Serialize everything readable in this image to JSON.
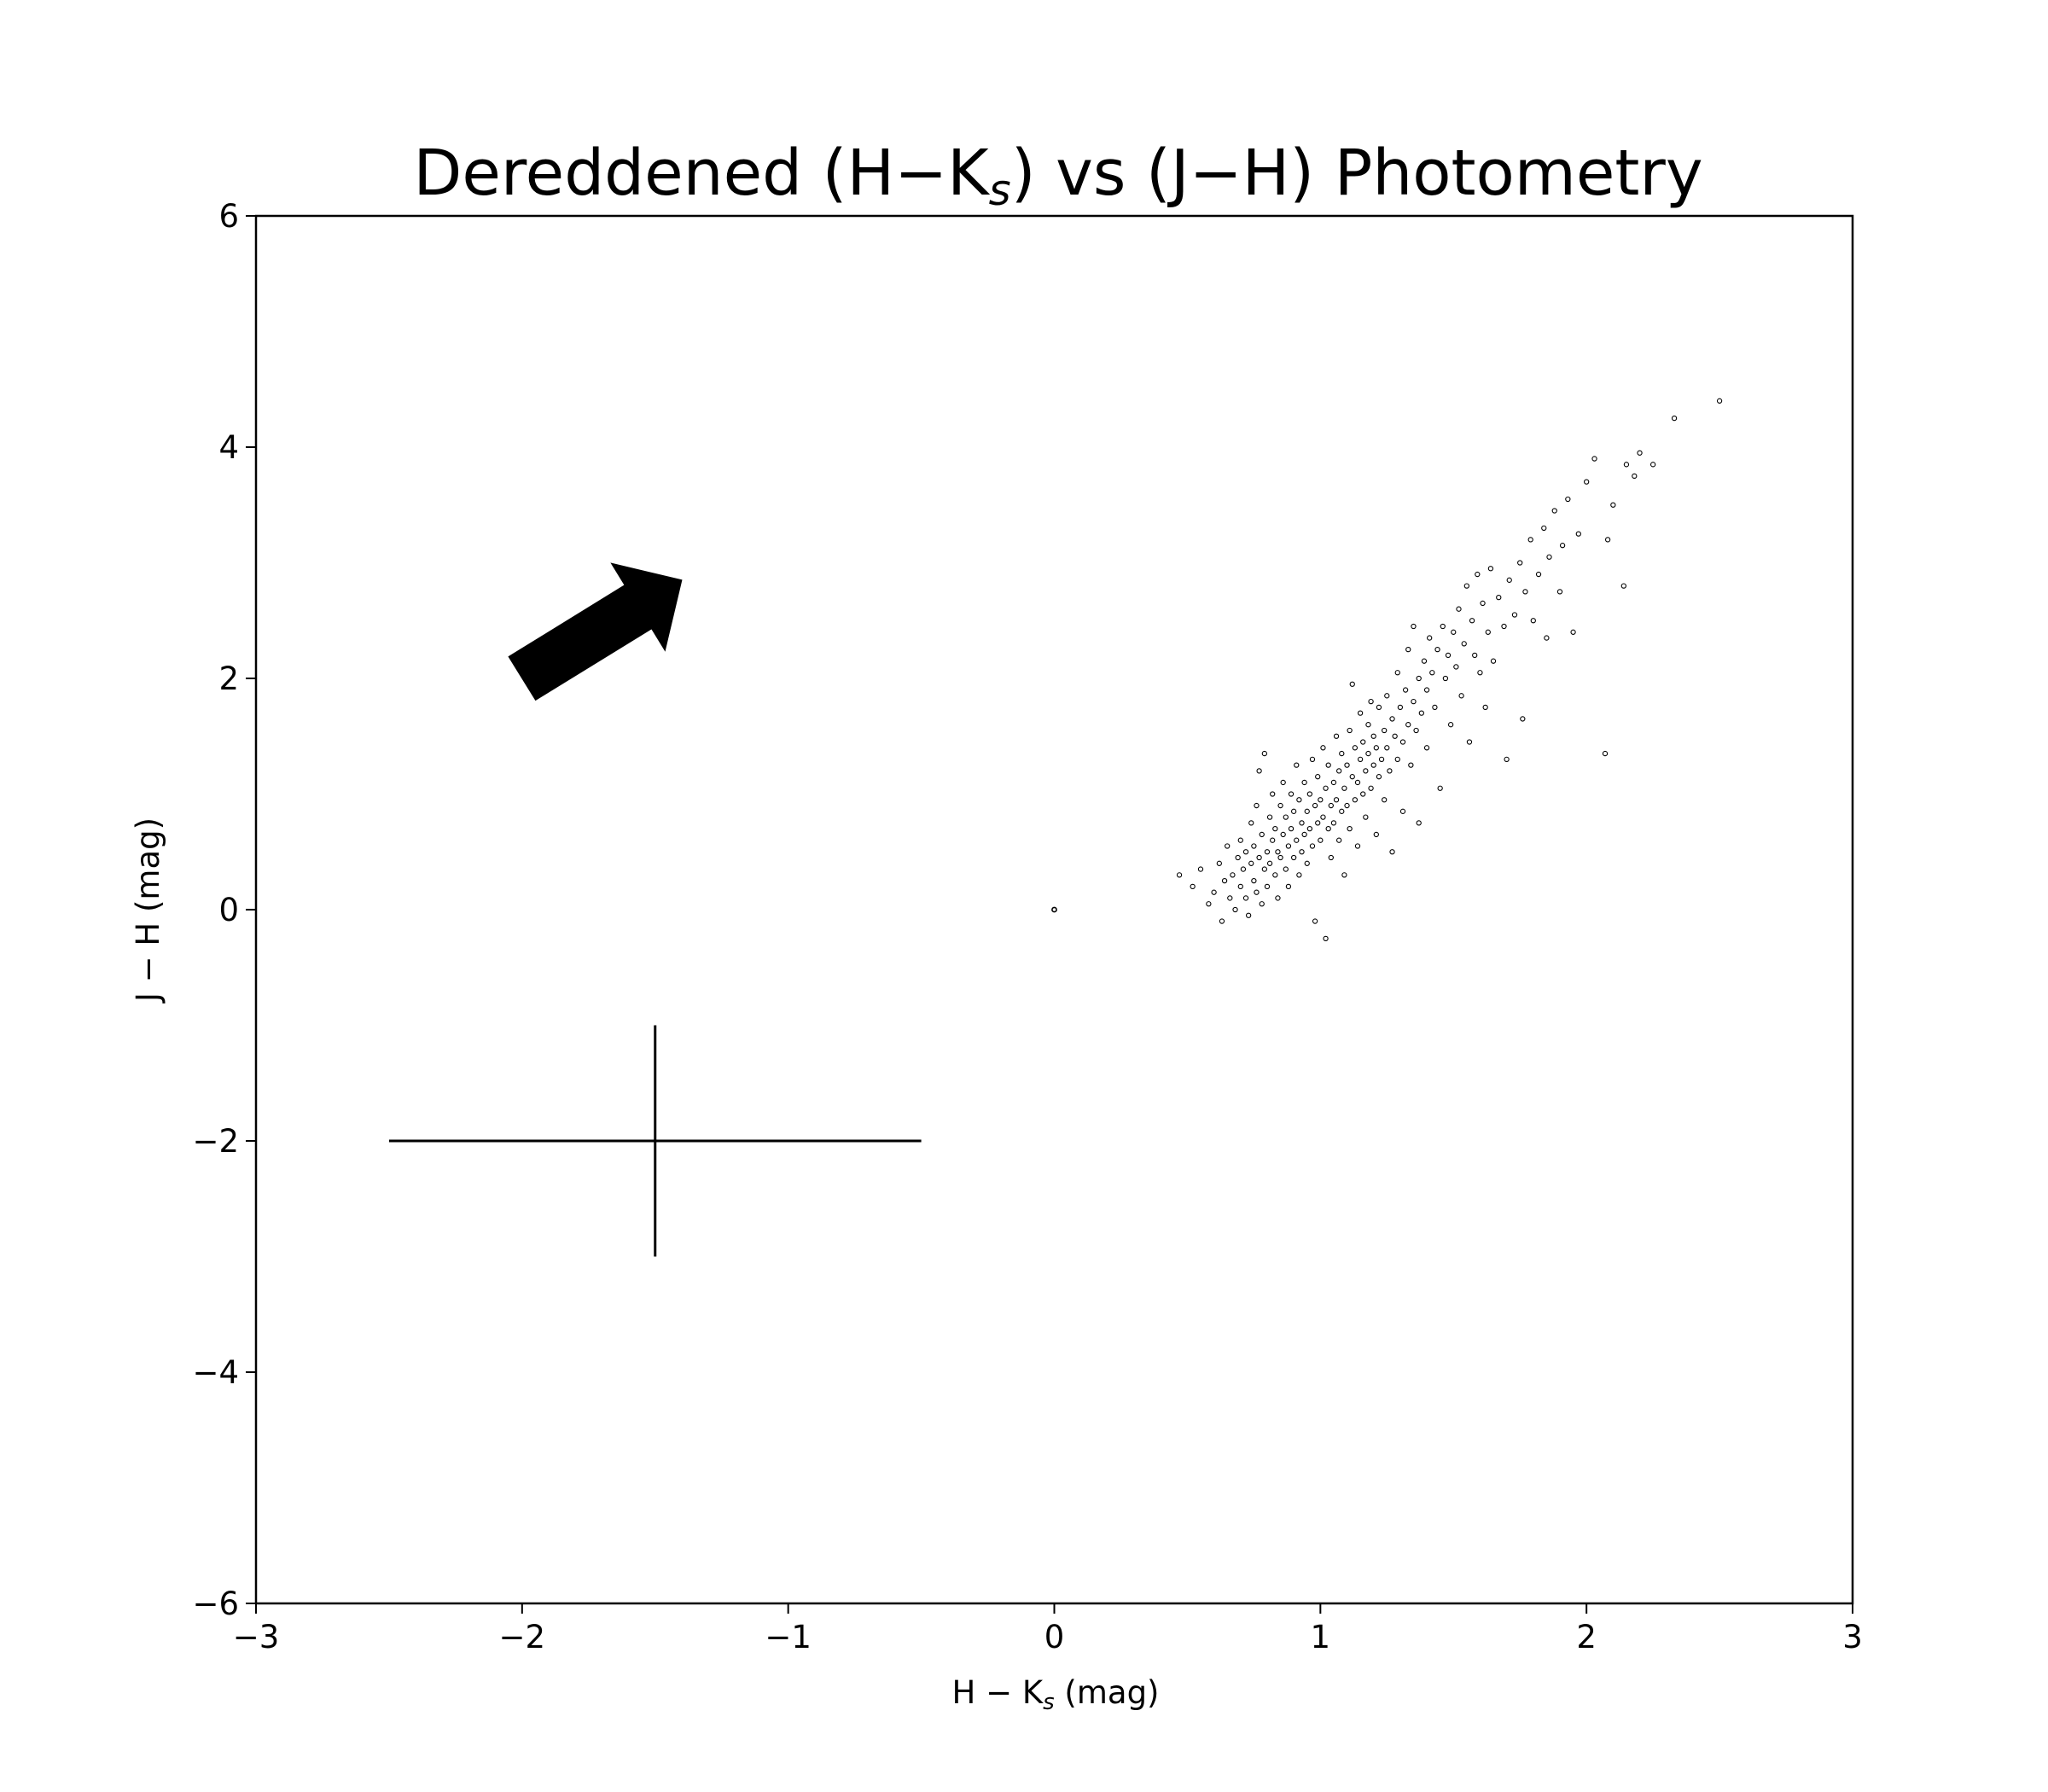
{
  "chart_data": {
    "type": "scatter",
    "title": {
      "main": "Dereddened (H−K",
      "sub": "s",
      "rest": ") vs (J−H) Photometry"
    },
    "xlabel": {
      "main": "H − K",
      "sub": "s",
      "rest": " (mag)"
    },
    "ylabel": "J − H (mag)",
    "xlim": [
      -3,
      3
    ],
    "ylim": [
      -6,
      6
    ],
    "xticks": [
      -3,
      -2,
      -1,
      0,
      1,
      2,
      3
    ],
    "yticks": [
      -6,
      -4,
      -2,
      0,
      2,
      4,
      6
    ],
    "xtick_labels": [
      "−3",
      "−2",
      "−1",
      "0",
      "1",
      "2",
      "3"
    ],
    "ytick_labels": [
      "−6",
      "−4",
      "−2",
      "0",
      "2",
      "4",
      "6"
    ],
    "grid": false,
    "marker_color": "#000000",
    "reddening_vector": {
      "x_start": -2.0,
      "y_start": 2.0,
      "x_end": -1.4,
      "y_end": 2.85
    },
    "error_cross": {
      "x": -1.5,
      "y": -2.0,
      "x_err": 1.0,
      "y_err": 1.0
    },
    "origin_point": {
      "x": 0.0,
      "y": 0.0
    },
    "points": [
      [
        0.47,
        0.3
      ],
      [
        0.52,
        0.2
      ],
      [
        0.55,
        0.35
      ],
      [
        0.58,
        0.05
      ],
      [
        0.6,
        0.15
      ],
      [
        0.62,
        0.4
      ],
      [
        0.63,
        -0.1
      ],
      [
        0.64,
        0.25
      ],
      [
        0.65,
        0.55
      ],
      [
        0.66,
        0.1
      ],
      [
        0.67,
        0.3
      ],
      [
        0.68,
        0.0
      ],
      [
        0.69,
        0.45
      ],
      [
        0.7,
        0.2
      ],
      [
        0.7,
        0.6
      ],
      [
        0.71,
        0.35
      ],
      [
        0.72,
        0.1
      ],
      [
        0.72,
        0.5
      ],
      [
        0.73,
        -0.05
      ],
      [
        0.74,
        0.4
      ],
      [
        0.74,
        0.75
      ],
      [
        0.75,
        0.25
      ],
      [
        0.75,
        0.55
      ],
      [
        0.76,
        0.15
      ],
      [
        0.76,
        0.9
      ],
      [
        0.77,
        0.45
      ],
      [
        0.77,
        1.2
      ],
      [
        0.78,
        0.05
      ],
      [
        0.78,
        0.65
      ],
      [
        0.79,
        0.35
      ],
      [
        0.79,
        1.35
      ],
      [
        0.8,
        0.5
      ],
      [
        0.8,
        0.2
      ],
      [
        0.81,
        0.8
      ],
      [
        0.81,
        0.4
      ],
      [
        0.82,
        0.6
      ],
      [
        0.82,
        1.0
      ],
      [
        0.83,
        0.3
      ],
      [
        0.83,
        0.7
      ],
      [
        0.84,
        0.5
      ],
      [
        0.84,
        0.1
      ],
      [
        0.85,
        0.9
      ],
      [
        0.85,
        0.45
      ],
      [
        0.86,
        0.65
      ],
      [
        0.86,
        1.1
      ],
      [
        0.87,
        0.35
      ],
      [
        0.87,
        0.8
      ],
      [
        0.88,
        0.55
      ],
      [
        0.88,
        0.2
      ],
      [
        0.89,
        1.0
      ],
      [
        0.89,
        0.7
      ],
      [
        0.9,
        0.45
      ],
      [
        0.9,
        0.85
      ],
      [
        0.91,
        0.6
      ],
      [
        0.91,
        1.25
      ],
      [
        0.92,
        0.3
      ],
      [
        0.92,
        0.95
      ],
      [
        0.93,
        0.75
      ],
      [
        0.93,
        0.5
      ],
      [
        0.94,
        1.1
      ],
      [
        0.94,
        0.65
      ],
      [
        0.95,
        0.85
      ],
      [
        0.95,
        0.4
      ],
      [
        0.96,
        1.0
      ],
      [
        0.96,
        0.7
      ],
      [
        0.97,
        1.3
      ],
      [
        0.97,
        0.55
      ],
      [
        0.98,
        0.9
      ],
      [
        0.98,
        -0.1
      ],
      [
        0.99,
        0.75
      ],
      [
        0.99,
        1.15
      ],
      [
        1.0,
        0.6
      ],
      [
        1.0,
        0.95
      ],
      [
        1.01,
        1.4
      ],
      [
        1.01,
        0.8
      ],
      [
        1.02,
        -0.25
      ],
      [
        1.02,
        1.05
      ],
      [
        1.03,
        0.7
      ],
      [
        1.03,
        1.25
      ],
      [
        1.04,
        0.9
      ],
      [
        1.04,
        0.45
      ],
      [
        1.05,
        1.1
      ],
      [
        1.05,
        0.75
      ],
      [
        1.06,
        1.5
      ],
      [
        1.06,
        0.95
      ],
      [
        1.07,
        0.6
      ],
      [
        1.07,
        1.2
      ],
      [
        1.08,
        0.85
      ],
      [
        1.08,
        1.35
      ],
      [
        1.09,
        1.05
      ],
      [
        1.09,
        0.3
      ],
      [
        1.1,
        1.25
      ],
      [
        1.1,
        0.9
      ],
      [
        1.11,
        1.55
      ],
      [
        1.11,
        0.7
      ],
      [
        1.12,
        1.15
      ],
      [
        1.12,
        1.95
      ],
      [
        1.13,
        0.95
      ],
      [
        1.13,
        1.4
      ],
      [
        1.14,
        1.1
      ],
      [
        1.14,
        0.55
      ],
      [
        1.15,
        1.3
      ],
      [
        1.15,
        1.7
      ],
      [
        1.16,
        1.0
      ],
      [
        1.16,
        1.45
      ],
      [
        1.17,
        1.2
      ],
      [
        1.17,
        0.8
      ],
      [
        1.18,
        1.6
      ],
      [
        1.18,
        1.35
      ],
      [
        1.19,
        1.05
      ],
      [
        1.19,
        1.8
      ],
      [
        1.2,
        1.25
      ],
      [
        1.2,
        1.5
      ],
      [
        1.21,
        0.65
      ],
      [
        1.21,
        1.4
      ],
      [
        1.22,
        1.15
      ],
      [
        1.22,
        1.75
      ],
      [
        1.23,
        1.3
      ],
      [
        1.24,
        1.55
      ],
      [
        1.24,
        0.95
      ],
      [
        1.25,
        1.4
      ],
      [
        1.25,
        1.85
      ],
      [
        1.26,
        1.2
      ],
      [
        1.27,
        1.65
      ],
      [
        1.27,
        0.5
      ],
      [
        1.28,
        1.5
      ],
      [
        1.29,
        1.3
      ],
      [
        1.29,
        2.05
      ],
      [
        1.3,
        1.75
      ],
      [
        1.31,
        1.45
      ],
      [
        1.31,
        0.85
      ],
      [
        1.32,
        1.9
      ],
      [
        1.33,
        1.6
      ],
      [
        1.33,
        2.25
      ],
      [
        1.34,
        1.25
      ],
      [
        1.35,
        1.8
      ],
      [
        1.35,
        2.45
      ],
      [
        1.36,
        1.55
      ],
      [
        1.37,
        2.0
      ],
      [
        1.37,
        0.75
      ],
      [
        1.38,
        1.7
      ],
      [
        1.39,
        2.15
      ],
      [
        1.4,
        1.9
      ],
      [
        1.4,
        1.4
      ],
      [
        1.41,
        2.35
      ],
      [
        1.42,
        2.05
      ],
      [
        1.43,
        1.75
      ],
      [
        1.44,
        2.25
      ],
      [
        1.45,
        1.05
      ],
      [
        1.46,
        2.45
      ],
      [
        1.47,
        2.0
      ],
      [
        1.48,
        2.2
      ],
      [
        1.49,
        1.6
      ],
      [
        1.5,
        2.4
      ],
      [
        1.51,
        2.1
      ],
      [
        1.52,
        2.6
      ],
      [
        1.53,
        1.85
      ],
      [
        1.54,
        2.3
      ],
      [
        1.55,
        2.8
      ],
      [
        1.56,
        1.45
      ],
      [
        1.57,
        2.5
      ],
      [
        1.58,
        2.2
      ],
      [
        1.59,
        2.9
      ],
      [
        1.6,
        2.05
      ],
      [
        1.61,
        2.65
      ],
      [
        1.62,
        1.75
      ],
      [
        1.63,
        2.4
      ],
      [
        1.64,
        2.95
      ],
      [
        1.65,
        2.15
      ],
      [
        1.67,
        2.7
      ],
      [
        1.69,
        2.45
      ],
      [
        1.7,
        1.3
      ],
      [
        1.71,
        2.85
      ],
      [
        1.73,
        2.55
      ],
      [
        1.75,
        3.0
      ],
      [
        1.76,
        1.65
      ],
      [
        1.77,
        2.75
      ],
      [
        1.79,
        3.2
      ],
      [
        1.8,
        2.5
      ],
      [
        1.82,
        2.9
      ],
      [
        1.84,
        3.3
      ],
      [
        1.85,
        2.35
      ],
      [
        1.86,
        3.05
      ],
      [
        1.88,
        3.45
      ],
      [
        1.9,
        2.75
      ],
      [
        1.91,
        3.15
      ],
      [
        1.93,
        3.55
      ],
      [
        1.95,
        2.4
      ],
      [
        1.97,
        3.25
      ],
      [
        2.0,
        3.7
      ],
      [
        2.03,
        3.9
      ],
      [
        2.07,
        1.35
      ],
      [
        2.08,
        3.2
      ],
      [
        2.1,
        3.5
      ],
      [
        2.14,
        2.8
      ],
      [
        2.15,
        3.85
      ],
      [
        2.18,
        3.75
      ],
      [
        2.2,
        3.95
      ],
      [
        2.25,
        3.85
      ],
      [
        2.33,
        4.25
      ],
      [
        2.5,
        4.4
      ]
    ]
  }
}
